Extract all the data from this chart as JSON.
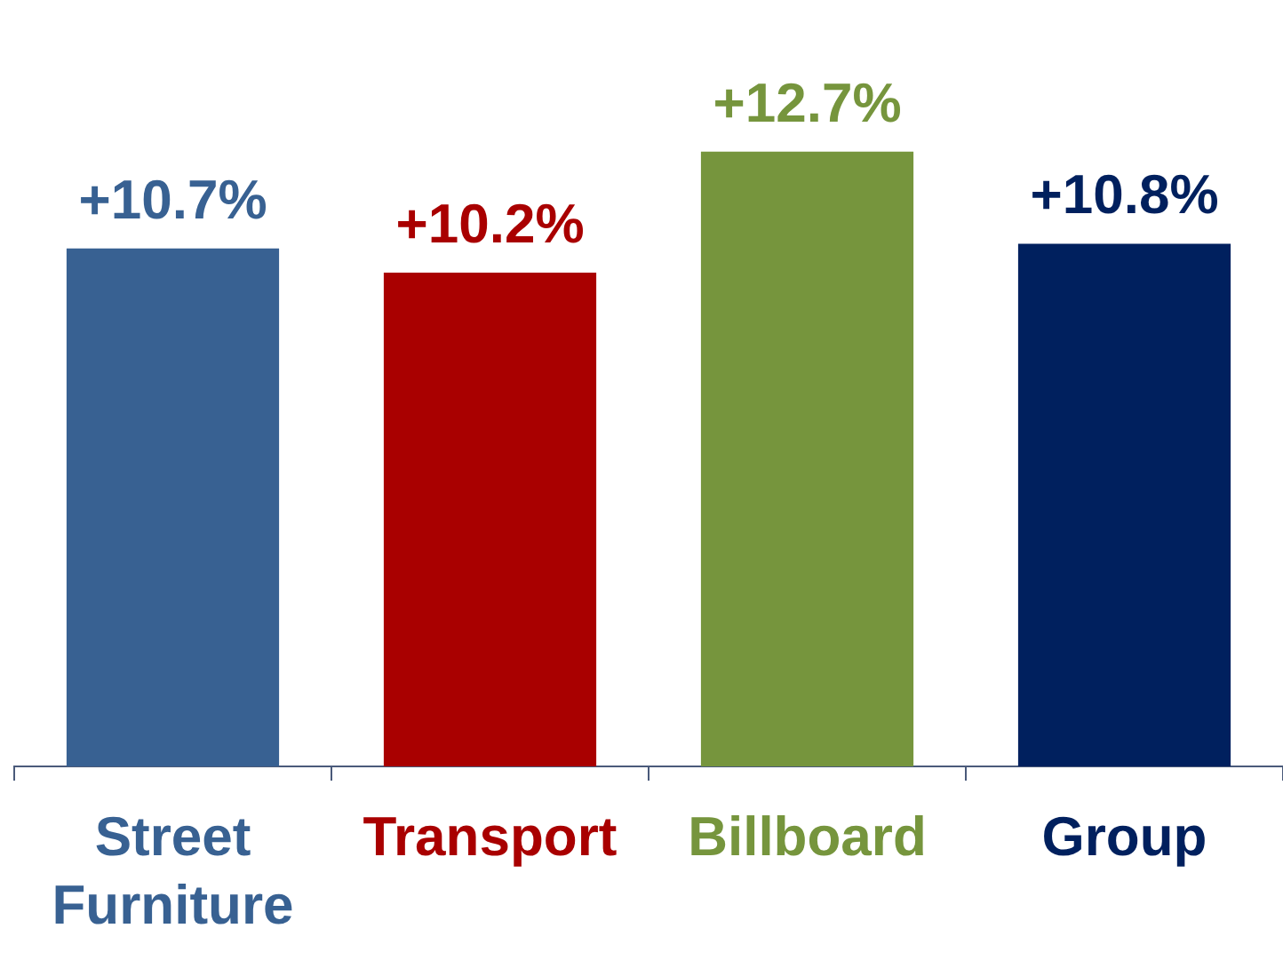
{
  "chart_data": {
    "type": "bar",
    "categories": [
      "Street Furniture",
      "Transport",
      "Billboard",
      "Group"
    ],
    "values": [
      10.7,
      10.2,
      12.7,
      10.8
    ],
    "colors": [
      "#386192",
      "#a90000",
      "#76953d",
      "#00205e"
    ],
    "value_labels": [
      "+10.7%",
      "+10.2%",
      "+12.7%",
      "+10.8%"
    ],
    "grid": false,
    "legend": false
  }
}
